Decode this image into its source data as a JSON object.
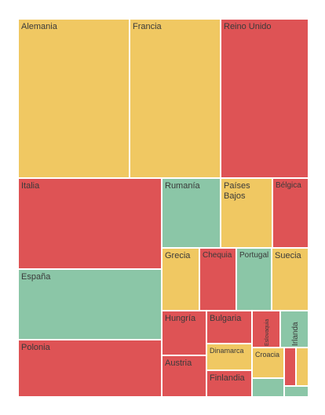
{
  "chart_data": {
    "type": "treemap",
    "colors": {
      "yellow": "#f0c862",
      "red": "#de5355",
      "green": "#8bc6a7"
    },
    "nodes": [
      {
        "name": "Alemania",
        "value": 16.8,
        "color": "yellow"
      },
      {
        "name": "Francia",
        "value": 11.9,
        "color": "yellow"
      },
      {
        "name": "Reino Unido",
        "value": 12.1,
        "color": "red"
      },
      {
        "name": "Italia",
        "value": 10.1,
        "color": "red"
      },
      {
        "name": "España",
        "value": 8.0,
        "color": "green"
      },
      {
        "name": "Polonia",
        "value": 6.4,
        "color": "red"
      },
      {
        "name": "Rumanía",
        "value": 3.4,
        "color": "green"
      },
      {
        "name": "Países Bajos",
        "value": 3.0,
        "color": "yellow"
      },
      {
        "name": "Bélgica",
        "value": 2.0,
        "color": "red"
      },
      {
        "name": "Grecia",
        "value": 2.0,
        "color": "yellow"
      },
      {
        "name": "Chequia",
        "value": 2.0,
        "color": "red"
      },
      {
        "name": "Portugal",
        "value": 2.0,
        "color": "green"
      },
      {
        "name": "Suecia",
        "value": 1.9,
        "color": "yellow"
      },
      {
        "name": "Hungría",
        "value": 1.6,
        "color": "red"
      },
      {
        "name": "Austria",
        "value": 1.5,
        "color": "red"
      },
      {
        "name": "Bulgaria",
        "value": 1.2,
        "color": "red"
      },
      {
        "name": "Dinamarca",
        "value": 0.9,
        "color": "yellow"
      },
      {
        "name": "Finlandia",
        "value": 0.9,
        "color": "red"
      },
      {
        "name": "Eslovaquia",
        "value": 0.9,
        "color": "red"
      },
      {
        "name": "Irlanda",
        "value": 0.8,
        "color": "green"
      },
      {
        "name": "Croacia",
        "value": 0.7,
        "color": "yellow"
      },
      {
        "name": "",
        "value": 0.4,
        "color": "red"
      },
      {
        "name": "",
        "value": 0.4,
        "color": "yellow"
      },
      {
        "name": "",
        "value": 0.3,
        "color": "green"
      },
      {
        "name": "",
        "value": 0.2,
        "color": "green"
      }
    ]
  }
}
